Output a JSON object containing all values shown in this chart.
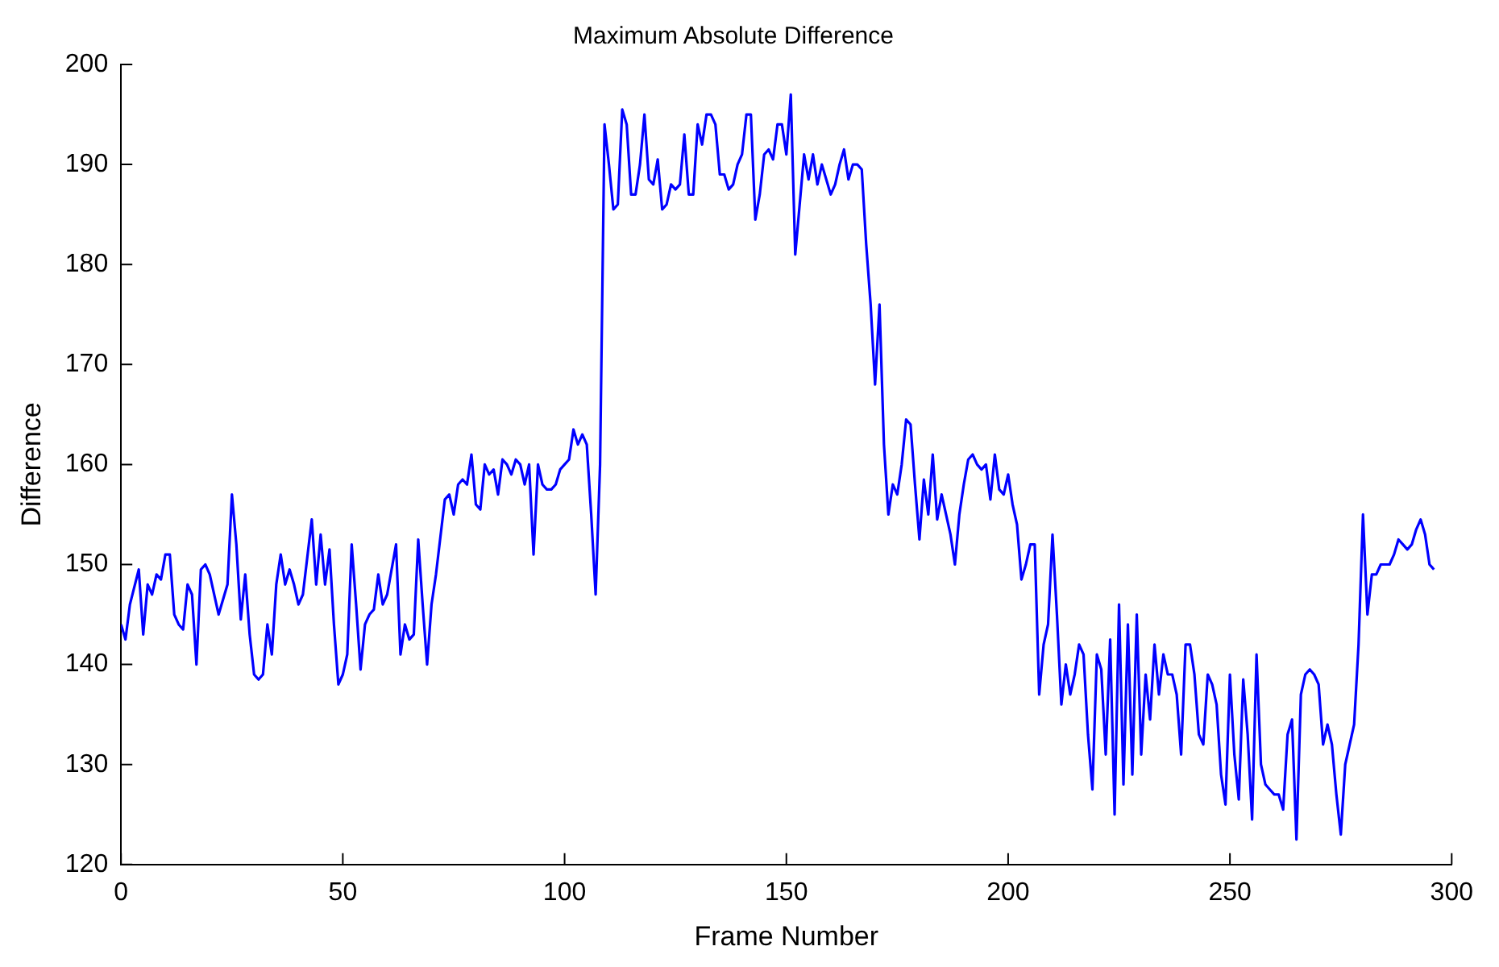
{
  "chart_data": {
    "type": "line",
    "title": "Maximum Absolute Difference",
    "xlabel": "Frame Number",
    "ylabel": "Difference",
    "xlim": [
      0,
      300
    ],
    "xticks": [
      0,
      50,
      100,
      150,
      200,
      250,
      300
    ],
    "ylim": [
      120,
      200
    ],
    "yticks": [
      120,
      130,
      140,
      150,
      160,
      170,
      180,
      190,
      200
    ],
    "grid": false,
    "legend": false,
    "marker": "none",
    "line_style": "solid",
    "x": [
      0,
      1,
      2,
      4,
      5,
      6,
      7,
      8,
      9,
      10,
      11,
      12,
      13,
      14,
      15,
      16,
      17,
      18,
      19,
      20,
      22,
      24,
      25,
      26,
      27,
      28,
      29,
      30,
      31,
      32,
      33,
      34,
      35,
      36,
      37,
      38,
      39,
      40,
      41,
      43,
      44,
      45,
      46,
      47,
      48,
      49,
      50,
      51,
      52,
      53,
      54,
      55,
      56,
      57,
      58,
      59,
      60,
      62,
      63,
      64,
      65,
      66,
      67,
      68,
      69,
      70,
      71,
      73,
      74,
      75,
      76,
      77,
      78,
      79,
      80,
      81,
      82,
      83,
      84,
      85,
      86,
      87,
      88,
      89,
      90,
      91,
      92,
      93,
      94,
      95,
      96,
      97,
      98,
      99,
      100,
      101,
      102,
      103,
      104,
      105,
      106,
      107,
      108,
      109,
      110,
      111,
      112,
      113,
      114,
      115,
      116,
      117,
      118,
      119,
      120,
      121,
      122,
      123,
      124,
      125,
      126,
      127,
      128,
      129,
      130,
      131,
      132,
      133,
      134,
      135,
      136,
      137,
      138,
      139,
      140,
      141,
      142,
      143,
      144,
      145,
      146,
      147,
      148,
      149,
      150,
      151,
      152,
      153,
      154,
      155,
      156,
      157,
      158,
      159,
      160,
      161,
      162,
      163,
      164,
      165,
      166,
      167,
      168,
      169,
      170,
      171,
      172,
      173,
      174,
      175,
      176,
      177,
      178,
      179,
      180,
      181,
      182,
      183,
      184,
      185,
      186,
      187,
      188,
      189,
      190,
      191,
      192,
      193,
      194,
      195,
      196,
      197,
      198,
      199,
      200,
      201,
      202,
      203,
      204,
      205,
      206,
      207,
      208,
      209,
      210,
      211,
      212,
      213,
      214,
      215,
      216,
      217,
      218,
      219,
      220,
      221,
      222,
      223,
      224,
      225,
      226,
      227,
      228,
      229,
      230,
      231,
      232,
      233,
      234,
      235,
      236,
      237,
      238,
      239,
      240,
      241,
      242,
      243,
      244,
      245,
      246,
      247,
      248,
      249,
      250,
      251,
      252,
      253,
      254,
      255,
      256,
      257,
      258,
      259,
      260,
      261,
      262,
      263,
      264,
      265,
      266,
      267,
      268,
      269,
      270,
      271,
      272,
      273,
      274,
      275,
      276,
      277,
      278,
      279,
      280,
      281,
      282,
      283,
      284,
      285,
      286,
      287,
      288,
      289,
      290,
      291,
      292,
      293,
      294,
      295,
      296
    ],
    "series": [
      {
        "color": "#0000ff",
        "values": [
          144,
          142.5,
          146,
          149.5,
          143,
          148,
          147,
          149,
          148.5,
          151,
          151,
          145,
          144,
          143.5,
          148,
          147,
          140,
          149.5,
          150,
          149,
          145,
          148,
          157,
          152,
          144.5,
          149,
          143,
          139,
          138.5,
          139,
          144,
          141,
          148,
          151,
          148,
          149.5,
          148,
          146,
          147,
          154.5,
          148,
          153,
          148,
          151.5,
          144,
          138,
          139,
          141,
          152,
          146,
          139.5,
          144,
          145,
          145.5,
          149,
          146,
          147,
          152,
          141,
          144,
          142.5,
          143,
          152.5,
          146,
          140,
          146,
          149,
          156.5,
          157,
          155,
          158,
          158.5,
          158,
          161,
          156,
          155.5,
          160,
          159,
          159.5,
          157,
          160.5,
          160,
          159,
          160.5,
          160,
          158,
          160,
          151,
          160,
          158,
          157.5,
          157.5,
          158,
          159.5,
          160,
          160.5,
          163.5,
          162,
          163,
          162,
          155,
          147,
          160,
          194,
          190,
          185.5,
          186,
          195.5,
          194,
          187,
          187,
          190,
          195,
          188.5,
          188,
          190.5,
          185.5,
          186,
          188,
          187.5,
          188,
          193,
          187,
          187,
          194,
          192,
          195,
          195,
          194,
          189,
          189,
          187.5,
          188,
          190,
          191,
          195,
          195,
          184.5,
          187,
          191,
          191.5,
          190.5,
          194,
          194,
          191,
          197,
          181,
          186,
          191,
          188.5,
          191,
          188,
          190,
          188.5,
          187,
          188,
          190,
          191.5,
          188.5,
          190,
          190,
          189.5,
          182,
          176,
          168,
          176,
          162,
          155,
          158,
          157,
          160,
          164.5,
          164,
          158,
          152.5,
          158.5,
          155,
          161,
          154.5,
          157,
          155,
          153,
          150,
          155,
          158,
          160.5,
          161,
          160,
          159.5,
          160,
          156.5,
          161,
          157.5,
          157,
          159,
          156,
          154,
          148.5,
          150,
          152,
          152,
          137,
          142,
          144,
          153,
          145,
          136,
          140,
          137,
          139,
          142,
          141,
          133,
          127.5,
          141,
          139.5,
          131,
          142.5,
          125,
          146,
          128,
          144,
          129,
          145,
          131,
          139,
          134.5,
          142,
          137,
          141,
          139,
          139,
          137,
          131,
          142,
          142,
          139,
          133,
          132,
          139,
          138,
          136,
          129,
          126,
          139,
          131,
          126.5,
          138.5,
          133,
          124.5,
          141,
          130,
          128,
          127.5,
          127,
          127,
          125.5,
          133,
          134.5,
          122.5,
          137,
          139,
          139.5,
          139,
          138,
          132,
          134,
          132,
          127,
          123,
          130,
          132,
          134,
          142,
          155,
          145,
          149,
          149,
          150,
          150,
          150,
          151,
          152.5,
          152,
          151.5,
          152,
          153.5,
          154.5,
          153,
          150,
          149.5
        ]
      }
    ]
  }
}
